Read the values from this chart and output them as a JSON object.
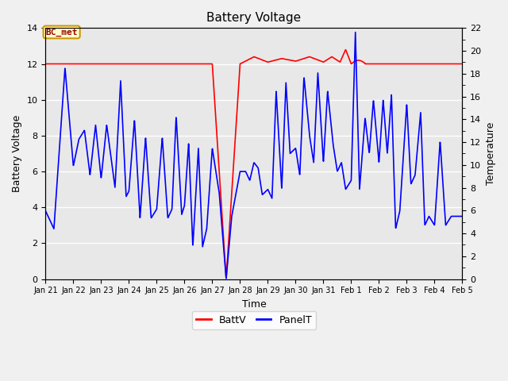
{
  "title": "Battery Voltage",
  "xlabel": "Time",
  "ylabel_left": "Battery Voltage",
  "ylabel_right": "Temperature",
  "ylim_left": [
    0,
    14
  ],
  "ylim_right": [
    0,
    22
  ],
  "yticks_left": [
    0,
    2,
    4,
    6,
    8,
    10,
    12,
    14
  ],
  "yticks_right": [
    0,
    2,
    4,
    6,
    8,
    10,
    12,
    14,
    16,
    18,
    20,
    22
  ],
  "xtick_labels": [
    "Jan 21",
    "Jan 22",
    "Jan 23",
    "Jan 24",
    "Jan 25",
    "Jan 26",
    "Jan 27",
    "Jan 28",
    "Jan 29",
    "Jan 30",
    "Jan 31",
    "Feb 1",
    "Feb 2",
    "Feb 3",
    "Feb 4",
    "Feb 5"
  ],
  "annotation_text": "BC_met",
  "annotation_box_facecolor": "#ffffcc",
  "annotation_text_color": "#990000",
  "annotation_edge_color": "#cc9900",
  "batt_color": "#ff0000",
  "panel_color": "#0000ff",
  "plot_bg_color": "#e8e8e8",
  "fig_bg_color": "#f0f0f0",
  "grid_color": "#ffffff",
  "legend_batt": "BattV",
  "legend_panel": "PanelT",
  "title_fontsize": 11,
  "axis_label_fontsize": 9,
  "tick_fontsize": 8,
  "legend_fontsize": 9,
  "line_width": 1.2
}
